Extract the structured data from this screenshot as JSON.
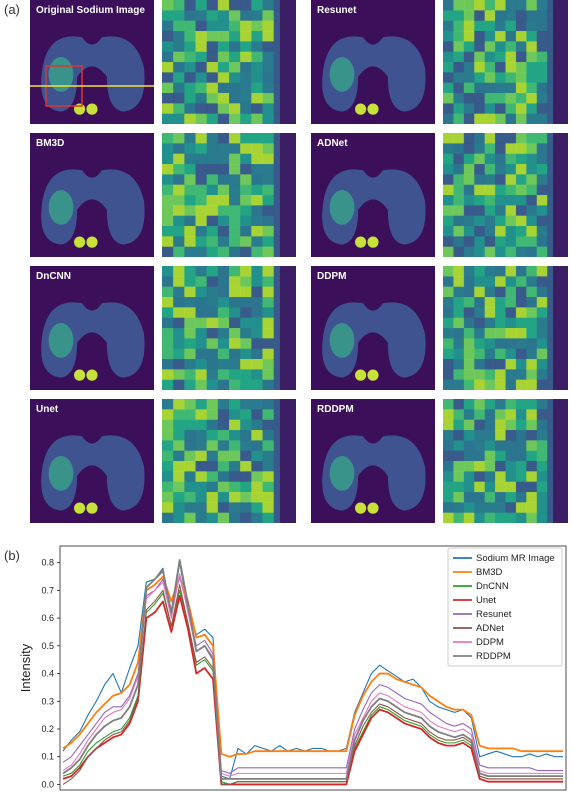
{
  "panel_a_label": "(a)",
  "panel_b_label": "(b)",
  "image_grid": {
    "left_column": [
      "Original Sodium Image",
      "BM3D",
      "DnCNN",
      "Unet"
    ],
    "right_column": [
      "Resunet",
      "ADNet",
      "DDPM",
      "RDDPM"
    ]
  },
  "chart_data": {
    "type": "line",
    "title": "",
    "xlabel": "",
    "ylabel": "Intensity",
    "ylim": [
      -0.02,
      0.86
    ],
    "yticks": [
      0.0,
      0.1,
      0.2,
      0.3,
      0.4,
      0.5,
      0.6,
      0.7,
      0.8
    ],
    "legend_position": "top-right",
    "x": [
      0,
      4,
      8,
      12,
      16,
      20,
      24,
      28,
      32,
      36,
      40,
      44,
      48,
      52,
      56,
      60,
      64,
      68,
      72,
      76,
      80,
      84,
      88,
      92,
      96,
      100,
      104,
      108,
      112,
      116,
      120,
      124,
      128,
      132,
      136,
      140,
      144,
      148,
      152,
      156,
      160,
      164,
      168,
      172,
      176,
      180,
      184,
      188,
      192,
      196,
      200,
      204,
      208,
      212,
      216,
      220,
      224,
      228,
      232,
      236,
      240
    ],
    "series": [
      {
        "name": "Sodium MR Image",
        "color": "#1f77b4",
        "values": [
          0.12,
          0.16,
          0.19,
          0.25,
          0.3,
          0.36,
          0.4,
          0.33,
          0.42,
          0.5,
          0.73,
          0.74,
          0.78,
          0.6,
          0.8,
          0.63,
          0.54,
          0.56,
          0.53,
          0.03,
          0.02,
          0.13,
          0.11,
          0.14,
          0.13,
          0.12,
          0.14,
          0.12,
          0.13,
          0.12,
          0.13,
          0.13,
          0.12,
          0.12,
          0.13,
          0.26,
          0.33,
          0.4,
          0.43,
          0.41,
          0.39,
          0.37,
          0.38,
          0.35,
          0.3,
          0.28,
          0.27,
          0.26,
          0.27,
          0.24,
          0.1,
          0.11,
          0.12,
          0.11,
          0.1,
          0.1,
          0.11,
          0.1,
          0.11,
          0.1,
          0.1
        ]
      },
      {
        "name": "BM3D",
        "color": "#ff7f0e",
        "values": [
          0.13,
          0.15,
          0.18,
          0.22,
          0.26,
          0.29,
          0.32,
          0.33,
          0.36,
          0.44,
          0.7,
          0.72,
          0.75,
          0.66,
          0.75,
          0.66,
          0.53,
          0.54,
          0.5,
          0.11,
          0.1,
          0.11,
          0.11,
          0.12,
          0.12,
          0.12,
          0.12,
          0.12,
          0.12,
          0.12,
          0.12,
          0.12,
          0.12,
          0.12,
          0.12,
          0.25,
          0.32,
          0.37,
          0.4,
          0.4,
          0.38,
          0.37,
          0.36,
          0.35,
          0.32,
          0.3,
          0.28,
          0.27,
          0.27,
          0.25,
          0.14,
          0.13,
          0.13,
          0.13,
          0.13,
          0.12,
          0.12,
          0.12,
          0.12,
          0.12,
          0.12
        ]
      },
      {
        "name": "DnCNN",
        "color": "#2ca02c",
        "values": [
          0.03,
          0.04,
          0.07,
          0.12,
          0.15,
          0.17,
          0.19,
          0.2,
          0.24,
          0.32,
          0.62,
          0.65,
          0.69,
          0.57,
          0.7,
          0.58,
          0.43,
          0.45,
          0.41,
          0.01,
          0.0,
          0.01,
          0.01,
          0.01,
          0.01,
          0.01,
          0.01,
          0.01,
          0.01,
          0.01,
          0.01,
          0.01,
          0.01,
          0.01,
          0.01,
          0.13,
          0.19,
          0.25,
          0.28,
          0.27,
          0.25,
          0.23,
          0.22,
          0.21,
          0.18,
          0.16,
          0.15,
          0.15,
          0.16,
          0.14,
          0.03,
          0.02,
          0.02,
          0.02,
          0.02,
          0.02,
          0.02,
          0.02,
          0.02,
          0.02,
          0.02
        ]
      },
      {
        "name": "Unet",
        "color": "#d62728",
        "values": [
          0.02,
          0.03,
          0.06,
          0.1,
          0.13,
          0.15,
          0.17,
          0.18,
          0.22,
          0.3,
          0.6,
          0.62,
          0.66,
          0.55,
          0.68,
          0.56,
          0.4,
          0.42,
          0.38,
          0.0,
          0.0,
          0.0,
          0.0,
          0.0,
          0.0,
          0.0,
          0.0,
          0.0,
          0.0,
          0.0,
          0.0,
          0.0,
          0.0,
          0.0,
          0.0,
          0.12,
          0.18,
          0.24,
          0.27,
          0.26,
          0.24,
          0.22,
          0.21,
          0.2,
          0.17,
          0.15,
          0.14,
          0.14,
          0.15,
          0.13,
          0.02,
          0.01,
          0.01,
          0.01,
          0.01,
          0.01,
          0.01,
          0.01,
          0.01,
          0.01,
          0.01
        ]
      },
      {
        "name": "Resunet",
        "color": "#9467bd",
        "values": [
          0.08,
          0.1,
          0.14,
          0.18,
          0.22,
          0.26,
          0.28,
          0.28,
          0.32,
          0.4,
          0.68,
          0.7,
          0.74,
          0.62,
          0.75,
          0.63,
          0.5,
          0.52,
          0.47,
          0.05,
          0.04,
          0.06,
          0.06,
          0.06,
          0.06,
          0.06,
          0.06,
          0.06,
          0.06,
          0.06,
          0.06,
          0.06,
          0.06,
          0.06,
          0.06,
          0.2,
          0.27,
          0.33,
          0.36,
          0.35,
          0.33,
          0.31,
          0.3,
          0.29,
          0.26,
          0.24,
          0.22,
          0.21,
          0.22,
          0.2,
          0.07,
          0.06,
          0.06,
          0.06,
          0.06,
          0.06,
          0.06,
          0.05,
          0.05,
          0.05,
          0.05
        ]
      },
      {
        "name": "ADNet",
        "color": "#8c564b",
        "values": [
          0.0,
          0.02,
          0.05,
          0.1,
          0.13,
          0.16,
          0.18,
          0.19,
          0.23,
          0.31,
          0.63,
          0.66,
          0.7,
          0.57,
          0.72,
          0.58,
          0.44,
          0.46,
          0.42,
          0.0,
          0.0,
          0.01,
          0.01,
          0.01,
          0.01,
          0.01,
          0.01,
          0.01,
          0.01,
          0.01,
          0.01,
          0.01,
          0.01,
          0.01,
          0.01,
          0.14,
          0.21,
          0.26,
          0.29,
          0.28,
          0.26,
          0.24,
          0.23,
          0.22,
          0.19,
          0.17,
          0.16,
          0.16,
          0.17,
          0.15,
          0.03,
          0.02,
          0.02,
          0.02,
          0.02,
          0.02,
          0.02,
          0.02,
          0.02,
          0.02,
          0.02
        ]
      },
      {
        "name": "DDPM",
        "color": "#e377c2",
        "values": [
          0.05,
          0.07,
          0.11,
          0.16,
          0.2,
          0.24,
          0.26,
          0.27,
          0.31,
          0.39,
          0.67,
          0.7,
          0.73,
          0.6,
          0.76,
          0.62,
          0.48,
          0.5,
          0.46,
          0.04,
          0.03,
          0.04,
          0.04,
          0.04,
          0.04,
          0.04,
          0.04,
          0.04,
          0.04,
          0.04,
          0.04,
          0.04,
          0.04,
          0.04,
          0.04,
          0.18,
          0.24,
          0.3,
          0.33,
          0.32,
          0.3,
          0.28,
          0.27,
          0.26,
          0.23,
          0.21,
          0.2,
          0.19,
          0.2,
          0.18,
          0.05,
          0.04,
          0.04,
          0.04,
          0.04,
          0.04,
          0.04,
          0.04,
          0.04,
          0.04,
          0.04
        ]
      },
      {
        "name": "RDDPM",
        "color": "#7f7f7f",
        "values": [
          0.04,
          0.06,
          0.09,
          0.14,
          0.18,
          0.21,
          0.23,
          0.24,
          0.28,
          0.36,
          0.71,
          0.74,
          0.77,
          0.62,
          0.81,
          0.65,
          0.48,
          0.5,
          0.45,
          0.02,
          0.02,
          0.02,
          0.02,
          0.02,
          0.02,
          0.02,
          0.02,
          0.02,
          0.02,
          0.02,
          0.02,
          0.02,
          0.02,
          0.02,
          0.02,
          0.16,
          0.23,
          0.28,
          0.31,
          0.3,
          0.28,
          0.26,
          0.25,
          0.24,
          0.21,
          0.19,
          0.18,
          0.17,
          0.18,
          0.16,
          0.04,
          0.03,
          0.03,
          0.03,
          0.03,
          0.03,
          0.03,
          0.03,
          0.03,
          0.03,
          0.03
        ]
      }
    ]
  }
}
